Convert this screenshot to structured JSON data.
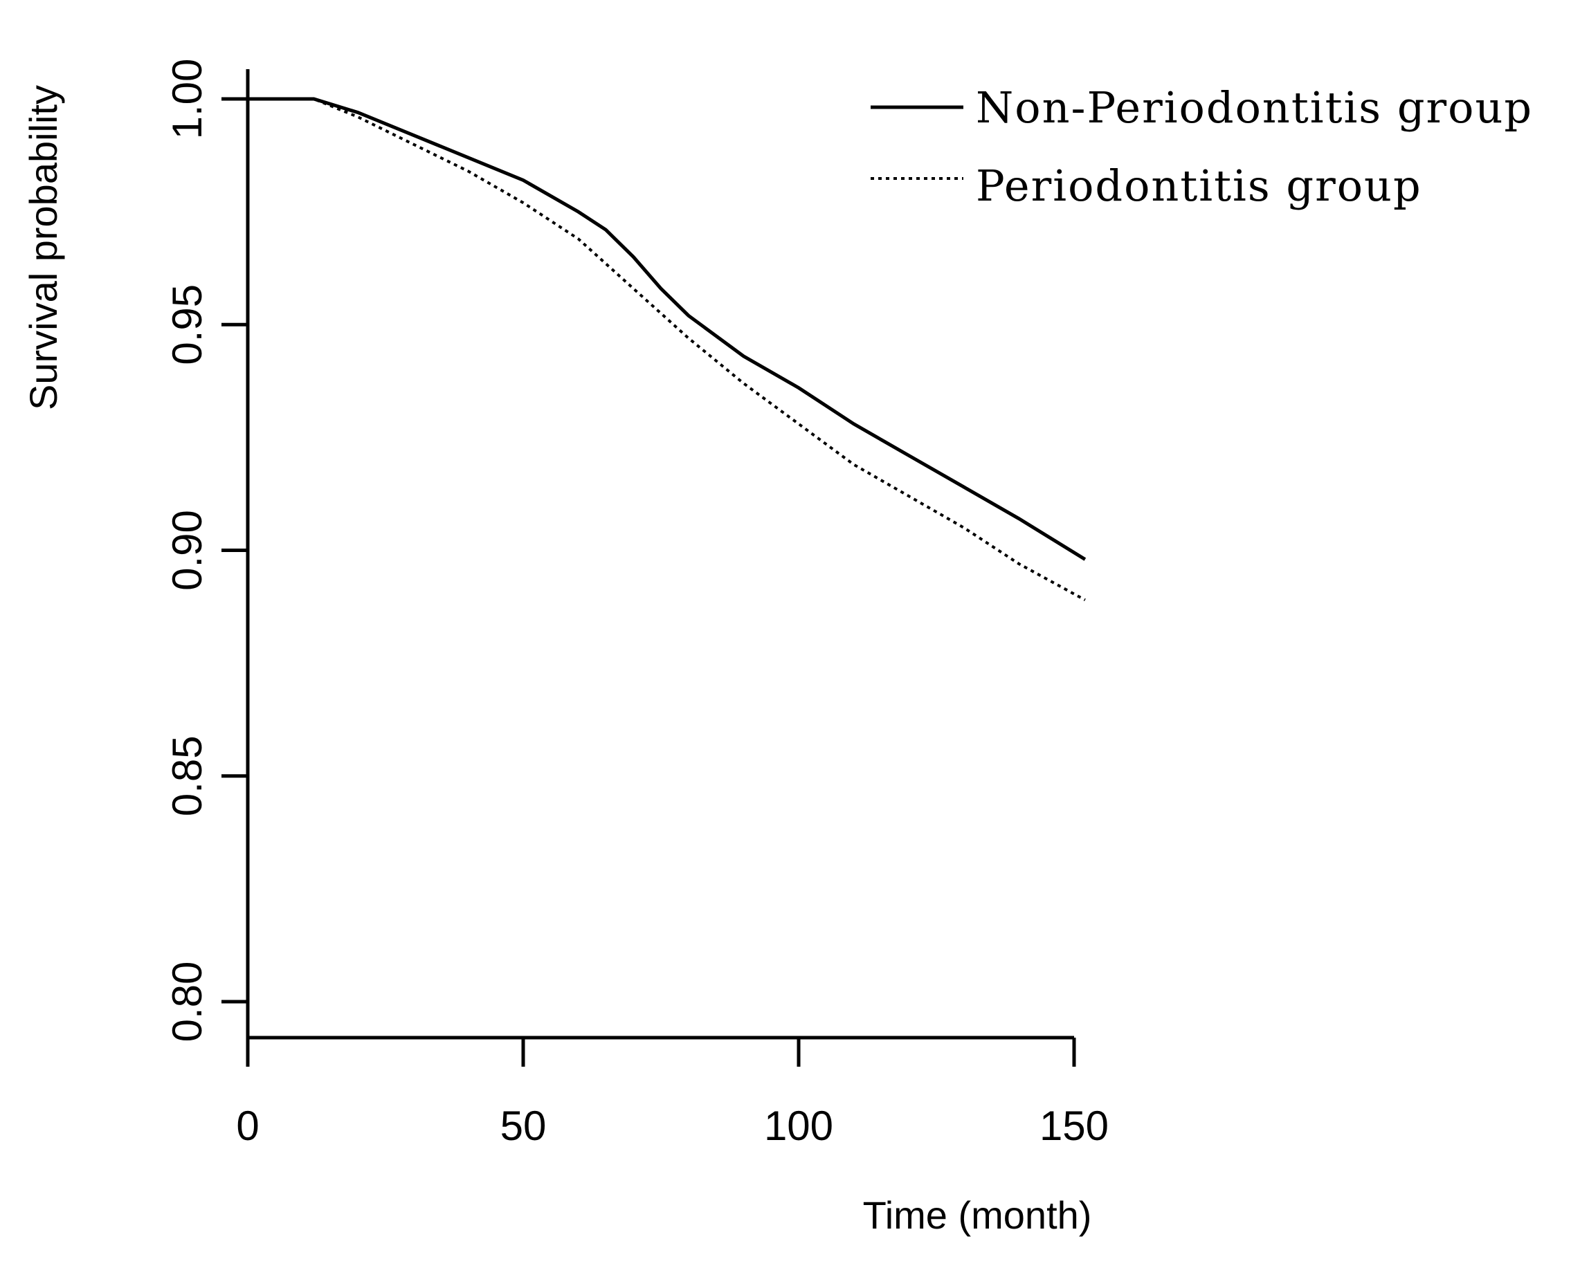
{
  "chart_data": {
    "type": "line",
    "title": "",
    "xlabel": "Time (month)",
    "ylabel": "Survival probability",
    "xlim": [
      0,
      152
    ],
    "ylim": [
      0.8,
      1.0
    ],
    "xticks": [
      0,
      50,
      100,
      150
    ],
    "xtick_labels": [
      "0",
      "50",
      "100",
      "150"
    ],
    "yticks": [
      0.8,
      0.85,
      0.9,
      0.95,
      1.0
    ],
    "ytick_labels": [
      "0.80",
      "0.85",
      "0.90",
      "0.95",
      "1.00"
    ],
    "grid": false,
    "legend_position": "top-right",
    "series": [
      {
        "name": "Non-Periodontitis group",
        "style": "solid",
        "color": "#000000",
        "x": [
          0,
          12,
          20,
          30,
          40,
          50,
          60,
          65,
          70,
          75,
          80,
          90,
          100,
          105,
          110,
          120,
          130,
          140,
          152
        ],
        "y": [
          1.0,
          1.0,
          0.997,
          0.992,
          0.987,
          0.982,
          0.975,
          0.971,
          0.965,
          0.958,
          0.952,
          0.943,
          0.936,
          0.932,
          0.928,
          0.921,
          0.914,
          0.907,
          0.898
        ]
      },
      {
        "name": "Periodontitis group",
        "style": "dotted",
        "color": "#000000",
        "x": [
          0,
          12,
          20,
          30,
          40,
          50,
          60,
          70,
          80,
          90,
          100,
          110,
          120,
          130,
          140,
          152
        ],
        "y": [
          1.0,
          1.0,
          0.996,
          0.99,
          0.984,
          0.977,
          0.969,
          0.958,
          0.947,
          0.937,
          0.928,
          0.919,
          0.912,
          0.905,
          0.897,
          0.889
        ]
      }
    ]
  }
}
